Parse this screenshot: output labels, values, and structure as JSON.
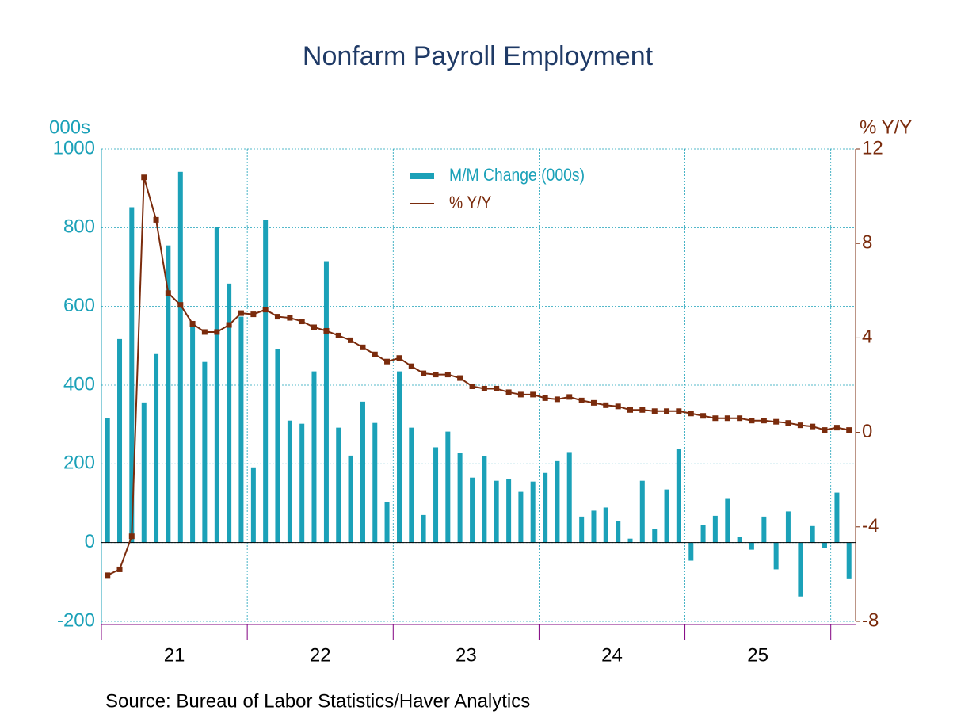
{
  "chart_data": {
    "type": "bar_line",
    "title": "Nonfarm Payroll Employment",
    "source": "Source:  Bureau of Labor Statistics/Haver Analytics",
    "ylabel": "000s",
    "y2label": "% Y/Y",
    "x": [
      2021.042,
      2021.125,
      2021.208,
      2021.292,
      2021.375,
      2021.458,
      2021.542,
      2021.625,
      2021.708,
      2021.792,
      2021.875,
      2021.958,
      2022.042,
      2022.125,
      2022.208,
      2022.292,
      2022.375,
      2022.458,
      2022.542,
      2022.625,
      2022.708,
      2022.792,
      2022.875,
      2022.958,
      2023.042,
      2023.125,
      2023.208,
      2023.292,
      2023.375,
      2023.458,
      2023.542,
      2023.625,
      2023.708,
      2023.792,
      2023.875,
      2023.958,
      2024.042,
      2024.125,
      2024.208,
      2024.292,
      2024.375,
      2024.458,
      2024.542,
      2024.625,
      2024.708,
      2024.792,
      2024.875,
      2024.958,
      2025.042,
      2025.125,
      2025.208,
      2025.292,
      2025.375,
      2025.458,
      2025.542,
      2025.625,
      2025.708,
      2025.792,
      2025.875,
      2025.958,
      2026.042,
      2026.125
    ],
    "series": [
      {
        "name": "M/M Change (000s)",
        "color": "#1ba1b8",
        "kind": "bar",
        "axis": "y",
        "values": [
          316,
          517,
          852,
          356,
          479,
          755,
          942,
          550,
          459,
          801,
          658,
          574,
          191,
          819,
          491,
          310,
          302,
          435,
          715,
          292,
          221,
          358,
          304,
          103,
          435,
          292,
          70,
          242,
          282,
          228,
          165,
          219,
          157,
          161,
          129,
          155,
          177,
          207,
          230,
          66,
          81,
          89,
          54,
          10,
          157,
          34,
          135,
          238,
          -46,
          44,
          68,
          111,
          14,
          -18,
          66,
          -68,
          79,
          -137,
          42,
          -14,
          127,
          -91
        ]
      },
      {
        "name": "% Y/Y",
        "color": "#7a2b0c",
        "kind": "line",
        "axis": "y2",
        "values": [
          -6.05,
          -5.8,
          -4.4,
          10.8,
          9.0,
          5.9,
          5.4,
          4.6,
          4.25,
          4.25,
          4.55,
          5.05,
          5.0,
          5.2,
          4.9,
          4.85,
          4.7,
          4.45,
          4.3,
          4.1,
          3.9,
          3.6,
          3.3,
          3.0,
          3.15,
          2.8,
          2.5,
          2.45,
          2.45,
          2.3,
          1.95,
          1.85,
          1.85,
          1.7,
          1.6,
          1.6,
          1.45,
          1.4,
          1.5,
          1.35,
          1.25,
          1.15,
          1.1,
          0.95,
          0.95,
          0.9,
          0.9,
          0.9,
          0.8,
          0.7,
          0.6,
          0.6,
          0.6,
          0.5,
          0.5,
          0.45,
          0.4,
          0.3,
          0.25,
          0.1,
          0.2,
          0.1
        ]
      }
    ],
    "xlim": [
      2021,
      2026.17
    ],
    "xticks": [
      {
        "value": 2021.5,
        "label": "21"
      },
      {
        "value": 2022.5,
        "label": "22"
      },
      {
        "value": 2023.5,
        "label": "23"
      },
      {
        "value": 2024.5,
        "label": "24"
      },
      {
        "value": 2025.5,
        "label": "25"
      }
    ],
    "xgrid": [
      2021,
      2022,
      2023,
      2024,
      2025,
      2026
    ],
    "ylim": [
      -200,
      1000
    ],
    "yticks": [
      -200,
      0,
      200,
      400,
      600,
      800,
      1000
    ],
    "y2lim": [
      -8,
      12
    ],
    "y2ticks": [
      -8,
      -4,
      0,
      4,
      8,
      12
    ],
    "grid": true,
    "legend": "top"
  }
}
